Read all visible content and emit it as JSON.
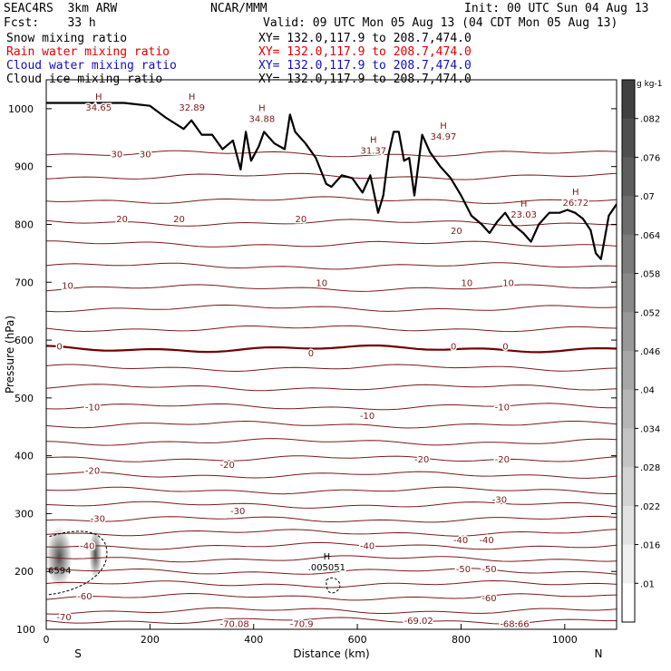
{
  "header": {
    "model": "SEAC4RS  3km ARW",
    "org": "NCAR/MMM",
    "init": "Init: 00 UTC Sun 04 Aug 13",
    "fcst": "Fcst:    33 h",
    "valid": "Valid: 09 UTC Mon 05 Aug 13 (04 CDT Mon 05 Aug 13)",
    "fields": [
      {
        "name": "Snow mixing ratio",
        "xy": "XY= 132.0,117.9 to 208.7,474.0",
        "color": "#000000"
      },
      {
        "name": "Rain water mixing ratio",
        "xy": "XY= 132.0,117.9 to 208.7,474.0",
        "color": "#e00000"
      },
      {
        "name": "Cloud water mixing ratio",
        "xy": "XY= 132.0,117.9 to 208.7,474.0",
        "color": "#1010c0"
      },
      {
        "name": "Cloud ice mixing ratio",
        "xy": "XY= 132.0,117.9 to 208.7,474.0",
        "color": "#000000"
      }
    ]
  },
  "chart_data": {
    "type": "line",
    "xlabel": "Distance (km)",
    "ylabel": "Pressure (hPa)",
    "xlim": [
      0,
      1100
    ],
    "ylim": [
      1050,
      100
    ],
    "x_ticks": [
      0,
      200,
      400,
      600,
      800,
      1000
    ],
    "y_ticks": [
      200,
      300,
      400,
      500,
      600,
      700,
      800,
      900,
      1000
    ],
    "y_tick_labels": [
      "200",
      "300",
      "400",
      "500",
      "600",
      "700",
      "800",
      "900",
      "1000"
    ],
    "top_partial_label": "100",
    "endpoints": {
      "left": "S",
      "right": "N"
    },
    "isotherms": [
      {
        "p": 115
      },
      {
        "p": 132
      },
      {
        "p": 156,
        "label": "-60"
      },
      {
        "p": 178
      },
      {
        "p": 200,
        "label": "-50"
      },
      {
        "p": 222
      },
      {
        "p": 244,
        "label": "-40"
      },
      {
        "p": 267
      },
      {
        "p": 290,
        "label": "-30"
      },
      {
        "p": 315
      },
      {
        "p": 340
      },
      {
        "p": 367,
        "label": "-20"
      },
      {
        "p": 395
      },
      {
        "p": 424
      },
      {
        "p": 454
      },
      {
        "p": 485,
        "label": "-10"
      },
      {
        "p": 518
      },
      {
        "p": 552
      },
      {
        "p": 585,
        "label": "0",
        "bold": true
      },
      {
        "p": 620
      },
      {
        "p": 655
      },
      {
        "p": 690,
        "label": "10"
      },
      {
        "p": 728
      },
      {
        "p": 766
      },
      {
        "p": 803,
        "label": "20"
      },
      {
        "p": 842
      },
      {
        "p": 883
      },
      {
        "p": 922,
        "label": "30"
      }
    ],
    "contour_labels": [
      {
        "x": 20,
        "p": 122,
        "text": "-70"
      },
      {
        "x": 335,
        "p": 110,
        "text": "-70.08"
      },
      {
        "x": 470,
        "p": 110,
        "text": "-70.9"
      },
      {
        "x": 690,
        "p": 116,
        "text": "-69.02"
      },
      {
        "x": 875,
        "p": 110,
        "text": "-68.66"
      },
      {
        "x": 60,
        "p": 158,
        "text": "-60"
      },
      {
        "x": 840,
        "p": 155,
        "text": "-60"
      },
      {
        "x": 790,
        "p": 205,
        "text": "-50"
      },
      {
        "x": 840,
        "p": 205,
        "text": "-50"
      },
      {
        "x": 65,
        "p": 245,
        "text": "-40"
      },
      {
        "x": 605,
        "p": 245,
        "text": "-40"
      },
      {
        "x": 785,
        "p": 255,
        "text": "-40"
      },
      {
        "x": 835,
        "p": 255,
        "text": "-40"
      },
      {
        "x": 85,
        "p": 292,
        "text": "-30"
      },
      {
        "x": 355,
        "p": 305,
        "text": "-30"
      },
      {
        "x": 860,
        "p": 325,
        "text": "-30"
      },
      {
        "x": 75,
        "p": 375,
        "text": "-20"
      },
      {
        "x": 335,
        "p": 385,
        "text": "-20"
      },
      {
        "x": 710,
        "p": 395,
        "text": "-20"
      },
      {
        "x": 865,
        "p": 395,
        "text": "-20"
      },
      {
        "x": 75,
        "p": 485,
        "text": "-10"
      },
      {
        "x": 605,
        "p": 470,
        "text": "-10"
      },
      {
        "x": 865,
        "p": 485,
        "text": "-10"
      },
      {
        "x": 20,
        "p": 590,
        "text": "0"
      },
      {
        "x": 505,
        "p": 578,
        "text": "0"
      },
      {
        "x": 780,
        "p": 590,
        "text": "0"
      },
      {
        "x": 880,
        "p": 590,
        "text": "0"
      },
      {
        "x": 30,
        "p": 695,
        "text": "10"
      },
      {
        "x": 520,
        "p": 700,
        "text": "10"
      },
      {
        "x": 800,
        "p": 700,
        "text": "10"
      },
      {
        "x": 880,
        "p": 700,
        "text": "10"
      },
      {
        "x": 135,
        "p": 810,
        "text": "20"
      },
      {
        "x": 245,
        "p": 810,
        "text": "20"
      },
      {
        "x": 480,
        "p": 810,
        "text": "20"
      },
      {
        "x": 780,
        "p": 790,
        "text": "20"
      },
      {
        "x": 125,
        "p": 922,
        "text": "30"
      },
      {
        "x": 180,
        "p": 922,
        "text": "30"
      }
    ],
    "highs": [
      {
        "x": 80,
        "p": 1000,
        "text": "34.65"
      },
      {
        "x": 260,
        "p": 1000,
        "text": "32.89"
      },
      {
        "x": 395,
        "p": 980,
        "text": "34.88"
      },
      {
        "x": 610,
        "p": 925,
        "text": "31.37"
      },
      {
        "x": 745,
        "p": 950,
        "text": "34.97"
      },
      {
        "x": 900,
        "p": 815,
        "text": "23.03"
      },
      {
        "x": 1000,
        "p": 835,
        "text": "26.72"
      },
      {
        "x": 520,
        "p": 205,
        "text": ".005051"
      }
    ],
    "cloud_ice_label": {
      "x": 0,
      "p": 203,
      "text": "6594"
    },
    "terrain": {
      "x": [
        0,
        150,
        200,
        230,
        265,
        280,
        300,
        320,
        340,
        360,
        375,
        385,
        395,
        410,
        420,
        440,
        460,
        470,
        480,
        500,
        520,
        540,
        550,
        570,
        590,
        610,
        625,
        640,
        650,
        660,
        670,
        680,
        690,
        700,
        710,
        725,
        740,
        760,
        780,
        800,
        820,
        840,
        855,
        870,
        885,
        900,
        920,
        935,
        950,
        970,
        990,
        1005,
        1020,
        1035,
        1050,
        1060,
        1070,
        1085,
        1100
      ],
      "p": [
        1010,
        1010,
        1005,
        985,
        965,
        980,
        955,
        955,
        930,
        945,
        895,
        960,
        910,
        935,
        960,
        940,
        930,
        990,
        960,
        940,
        915,
        870,
        865,
        885,
        880,
        855,
        885,
        820,
        850,
        920,
        960,
        960,
        910,
        915,
        850,
        955,
        925,
        900,
        880,
        850,
        815,
        800,
        785,
        805,
        820,
        800,
        785,
        770,
        800,
        820,
        820,
        825,
        820,
        810,
        790,
        750,
        740,
        815,
        835
      ]
    },
    "colorbar": {
      "unit": "g kg-1",
      "ticks": [
        ".082",
        ".076",
        ".07",
        ".064",
        ".058",
        ".052",
        ".046",
        ".04",
        ".034",
        ".028",
        ".022",
        ".016",
        ".01"
      ],
      "top_color": "#404040",
      "bottom_color": "#ffffff"
    }
  }
}
